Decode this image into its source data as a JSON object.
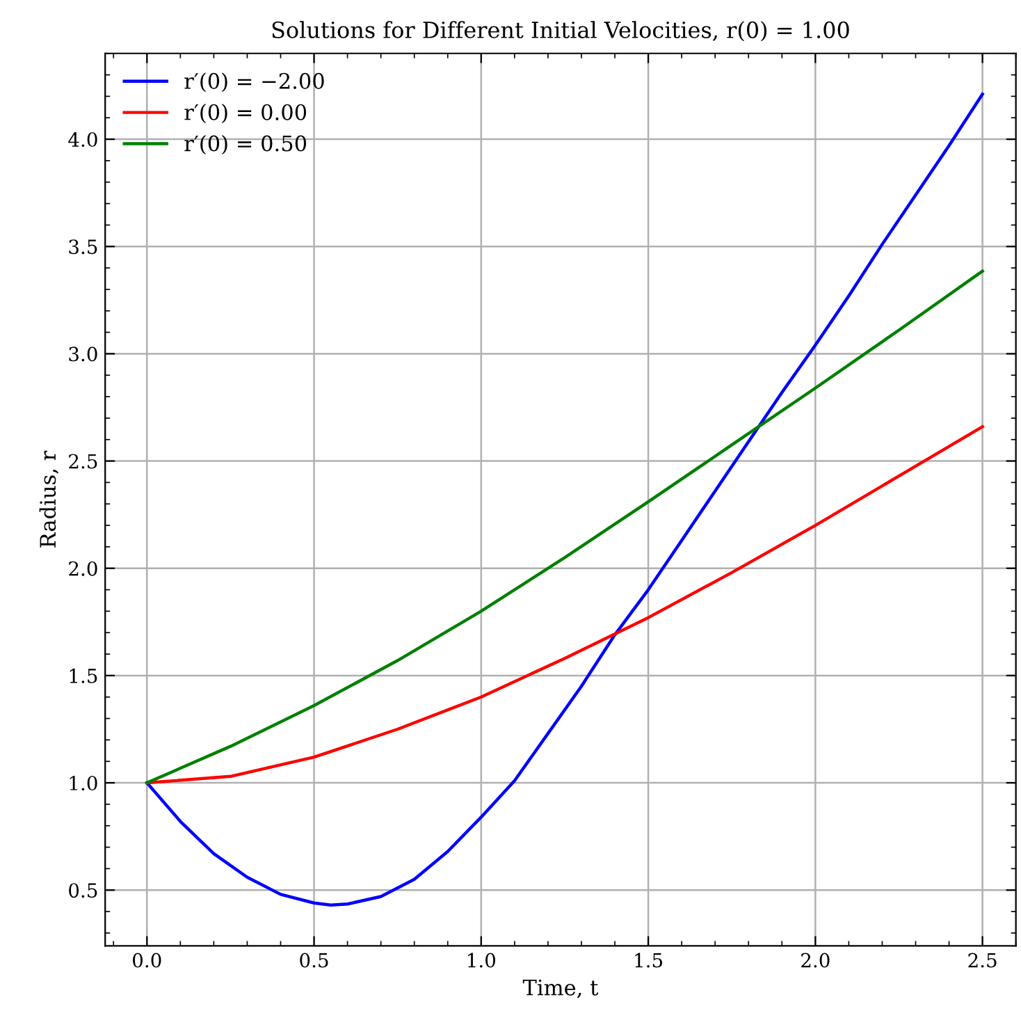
{
  "chart_data": {
    "type": "line",
    "title": "Solutions for Different Initial Velocities, r(0) = 1.00",
    "xlabel": "Time, t",
    "ylabel": "Radius, r",
    "series": [
      {
        "name": "r′(0) = −2.00",
        "color": "#0000ff",
        "x": [
          0,
          0.1,
          0.2,
          0.3,
          0.4,
          0.5,
          0.55,
          0.6,
          0.7,
          0.8,
          0.9,
          1.0,
          1.1,
          1.2,
          1.3,
          1.4,
          1.5,
          1.6,
          1.7,
          1.8,
          1.9,
          2.0,
          2.1,
          2.2,
          2.3,
          2.4,
          2.5
        ],
        "values": [
          1.0,
          0.82,
          0.67,
          0.56,
          0.48,
          0.44,
          0.43,
          0.435,
          0.47,
          0.55,
          0.68,
          0.84,
          1.01,
          1.23,
          1.45,
          1.69,
          1.9,
          2.13,
          2.36,
          2.59,
          2.82,
          3.04,
          3.27,
          3.51,
          3.74,
          3.97,
          4.21
        ]
      },
      {
        "name": "r′(0) = 0.00",
        "color": "#ff0000",
        "x": [
          0,
          0.25,
          0.5,
          0.75,
          1.0,
          1.25,
          1.5,
          1.75,
          2.0,
          2.25,
          2.5
        ],
        "values": [
          1.0,
          1.03,
          1.12,
          1.25,
          1.4,
          1.58,
          1.77,
          1.98,
          2.2,
          2.43,
          2.66
        ]
      },
      {
        "name": "r′(0) = 0.50",
        "color": "#008000",
        "x": [
          0,
          0.25,
          0.5,
          0.75,
          1.0,
          1.25,
          1.5,
          1.75,
          2.0,
          2.25,
          2.5
        ],
        "values": [
          1.0,
          1.17,
          1.36,
          1.57,
          1.8,
          2.05,
          2.31,
          2.575,
          2.84,
          3.11,
          3.385
        ]
      }
    ],
    "xlim": [
      -0.125,
      2.6
    ],
    "ylim": [
      0.24,
      4.4
    ],
    "xticks": [
      {
        "value": 0,
        "label": "0.0"
      },
      0.5,
      {
        "value": 1,
        "label": "1.0"
      },
      1.5,
      {
        "value": 2,
        "label": "2.0"
      },
      2.5
    ],
    "yticks": [
      0.5,
      {
        "value": 1,
        "label": "1.0"
      },
      1.5,
      {
        "value": 2,
        "label": "2.0"
      },
      2.5,
      {
        "value": 3,
        "label": "3.0"
      },
      3.5,
      {
        "value": 4,
        "label": "4.0"
      }
    ],
    "grid": true,
    "legend": "top left",
    "marker": "none",
    "line_style": "solid"
  }
}
